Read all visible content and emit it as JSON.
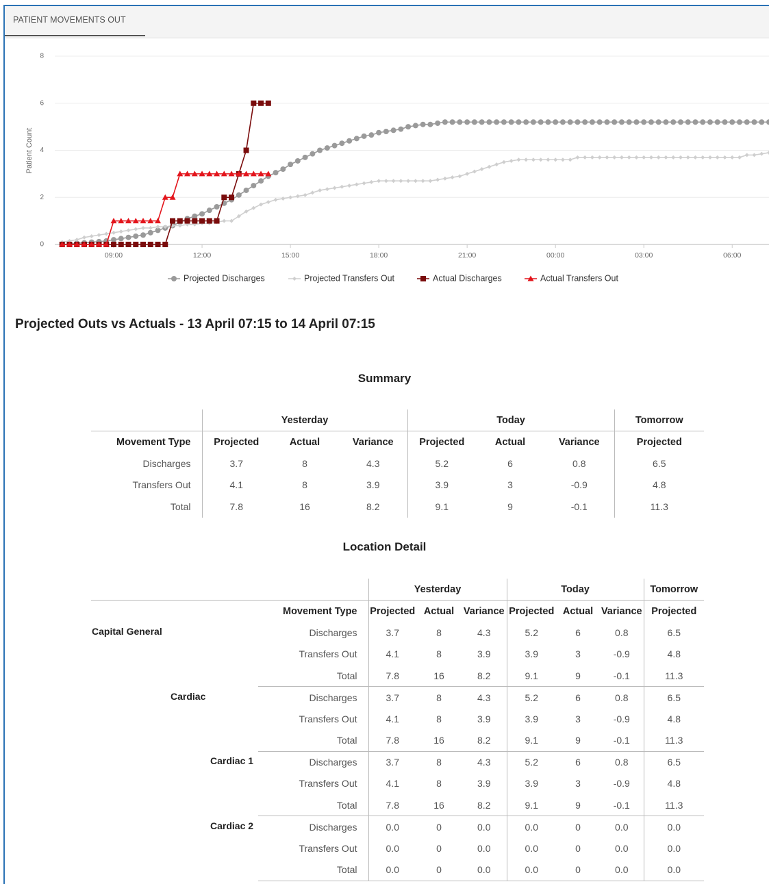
{
  "tab": "PATIENT MOVEMENTS OUT",
  "chart_data": {
    "type": "line",
    "ylabel": "Patient Count",
    "x": [
      7.25,
      7.5,
      7.75,
      8,
      8.25,
      8.5,
      8.75,
      9,
      9.25,
      9.5,
      9.75,
      10,
      10.25,
      10.5,
      10.75,
      11,
      11.25,
      11.5,
      11.75,
      12,
      12.25,
      12.5,
      12.75,
      13,
      13.25,
      13.5,
      13.75,
      14,
      14.25,
      14.5,
      14.75,
      15,
      15.25,
      15.5,
      15.75,
      16,
      16.25,
      16.5,
      16.75,
      17,
      17.25,
      17.5,
      17.75,
      18,
      18.25,
      18.5,
      18.75,
      19,
      19.25,
      19.5,
      19.75,
      20,
      20.25,
      20.5,
      20.75,
      21,
      21.25,
      21.5,
      21.75,
      22,
      22.25,
      22.5,
      22.75,
      23,
      23.25,
      23.5,
      23.75,
      24,
      24.25,
      24.5,
      24.75,
      25,
      25.25,
      25.5,
      25.75,
      26,
      26.25,
      26.5,
      26.75,
      27,
      27.25,
      27.5,
      27.75,
      28,
      28.25,
      28.5,
      28.75,
      29,
      29.25,
      29.5,
      29.75,
      30,
      30.25,
      30.5,
      30.75,
      31,
      31.25
    ],
    "xlim": [
      7,
      31.25
    ],
    "xticks": [
      {
        "value": 9,
        "label": "09:00"
      },
      {
        "value": 12,
        "label": "12:00"
      },
      {
        "value": 15,
        "label": "15:00"
      },
      {
        "value": 18,
        "label": "18:00"
      },
      {
        "value": 21,
        "label": "21:00"
      },
      {
        "value": 24,
        "label": "00:00"
      },
      {
        "value": 27,
        "label": "03:00"
      },
      {
        "value": 30,
        "label": "06:00"
      }
    ],
    "ylim": [
      0,
      8
    ],
    "yticks": [
      0,
      2,
      4,
      6,
      8
    ],
    "grid": true,
    "legend": "bottom",
    "series": [
      {
        "name": "Projected Discharges",
        "color": "#9a9a9a",
        "marker": "circle",
        "values": [
          0,
          0.02,
          0.05,
          0.07,
          0.1,
          0.12,
          0.15,
          0.2,
          0.25,
          0.3,
          0.35,
          0.4,
          0.5,
          0.6,
          0.7,
          0.8,
          0.95,
          1.1,
          1.2,
          1.3,
          1.45,
          1.6,
          1.75,
          1.9,
          2.1,
          2.3,
          2.5,
          2.7,
          2.9,
          3.05,
          3.2,
          3.4,
          3.55,
          3.7,
          3.85,
          4,
          4.1,
          4.2,
          4.3,
          4.4,
          4.5,
          4.6,
          4.65,
          4.75,
          4.8,
          4.85,
          4.9,
          5,
          5.05,
          5.1,
          5.1,
          5.15,
          5.2,
          5.2,
          5.2,
          5.2,
          5.2,
          5.2,
          5.2,
          5.2,
          5.2,
          5.2,
          5.2,
          5.2,
          5.2,
          5.2,
          5.2,
          5.2,
          5.2,
          5.2,
          5.2,
          5.2,
          5.2,
          5.2,
          5.2,
          5.2,
          5.2,
          5.2,
          5.2,
          5.2,
          5.2,
          5.2,
          5.2,
          5.2,
          5.2,
          5.2,
          5.2,
          5.2,
          5.2,
          5.2,
          5.2,
          5.2,
          5.2,
          5.2,
          5.2,
          5.2,
          5.2
        ]
      },
      {
        "name": "Projected Transfers Out",
        "color": "#cfcfcf",
        "marker": "diamond",
        "values": [
          0.1,
          0.15,
          0.2,
          0.3,
          0.35,
          0.4,
          0.45,
          0.5,
          0.55,
          0.6,
          0.65,
          0.7,
          0.7,
          0.75,
          0.75,
          0.8,
          0.8,
          0.85,
          0.85,
          0.9,
          0.9,
          0.95,
          1,
          1,
          1.2,
          1.4,
          1.55,
          1.7,
          1.8,
          1.9,
          1.95,
          2,
          2.05,
          2.1,
          2.2,
          2.3,
          2.35,
          2.4,
          2.45,
          2.5,
          2.55,
          2.6,
          2.65,
          2.7,
          2.7,
          2.7,
          2.7,
          2.7,
          2.7,
          2.7,
          2.7,
          2.75,
          2.8,
          2.85,
          2.9,
          3,
          3.1,
          3.2,
          3.3,
          3.4,
          3.5,
          3.55,
          3.6,
          3.6,
          3.6,
          3.6,
          3.6,
          3.6,
          3.6,
          3.6,
          3.7,
          3.7,
          3.7,
          3.7,
          3.7,
          3.7,
          3.7,
          3.7,
          3.7,
          3.7,
          3.7,
          3.7,
          3.7,
          3.7,
          3.7,
          3.7,
          3.7,
          3.7,
          3.7,
          3.7,
          3.7,
          3.7,
          3.7,
          3.8,
          3.8,
          3.85,
          3.9
        ]
      },
      {
        "name": "Actual Discharges",
        "color": "#7a0c0c",
        "marker": "square",
        "values": [
          0,
          0,
          0,
          0,
          0,
          0,
          0,
          0,
          0,
          0,
          0,
          0,
          0,
          0,
          0,
          1,
          1,
          1,
          1,
          1,
          1,
          1,
          2,
          2,
          3,
          4,
          6,
          6,
          6,
          null,
          null,
          null,
          null,
          null,
          null,
          null,
          null,
          null,
          null,
          null,
          null,
          null,
          null,
          null,
          null,
          null,
          null,
          null,
          null,
          null,
          null,
          null,
          null,
          null,
          null,
          null,
          null,
          null,
          null,
          null,
          null,
          null,
          null,
          null,
          null,
          null,
          null,
          null,
          null,
          null,
          null,
          null,
          null,
          null,
          null,
          null,
          null,
          null,
          null,
          null,
          null,
          null,
          null,
          null,
          null,
          null,
          null,
          null,
          null,
          null,
          null,
          null,
          null,
          null,
          null,
          null,
          null
        ]
      },
      {
        "name": "Actual Transfers Out",
        "color": "#e3151c",
        "marker": "triangle",
        "values": [
          0,
          0,
          0,
          0,
          0,
          0,
          0,
          1,
          1,
          1,
          1,
          1,
          1,
          1,
          2,
          2,
          3,
          3,
          3,
          3,
          3,
          3,
          3,
          3,
          3,
          3,
          3,
          3,
          3,
          null,
          null,
          null,
          null,
          null,
          null,
          null,
          null,
          null,
          null,
          null,
          null,
          null,
          null,
          null,
          null,
          null,
          null,
          null,
          null,
          null,
          null,
          null,
          null,
          null,
          null,
          null,
          null,
          null,
          null,
          null,
          null,
          null,
          null,
          null,
          null,
          null,
          null,
          null,
          null,
          null,
          null,
          null,
          null,
          null,
          null,
          null,
          null,
          null,
          null,
          null,
          null,
          null,
          null,
          null,
          null,
          null,
          null,
          null,
          null,
          null,
          null,
          null,
          null,
          null,
          null,
          null,
          null
        ]
      }
    ]
  },
  "heading": "Projected Outs vs Actuals - 13 April 07:15 to 14 April 07:15",
  "summary": {
    "title": "Summary",
    "row_header": "Movement Type",
    "groups": [
      {
        "name": "Yesterday",
        "columns": [
          "Projected",
          "Actual",
          "Variance"
        ]
      },
      {
        "name": "Today",
        "columns": [
          "Projected",
          "Actual",
          "Variance"
        ]
      },
      {
        "name": "Tomorrow",
        "columns": [
          "Projected"
        ]
      }
    ],
    "rows": [
      [
        "Discharges",
        "3.7",
        "8",
        "4.3",
        "5.2",
        "6",
        "0.8",
        "6.5"
      ],
      [
        "Transfers Out",
        "4.1",
        "8",
        "3.9",
        "3.9",
        "3",
        "-0.9",
        "4.8"
      ],
      [
        "Total",
        "7.8",
        "16",
        "8.2",
        "9.1",
        "9",
        "-0.1",
        "11.3"
      ]
    ]
  },
  "location_detail": {
    "title": "Location Detail",
    "row_header": "Movement Type",
    "groups": [
      {
        "name": "Yesterday",
        "columns": [
          "Projected",
          "Actual",
          "Variance"
        ]
      },
      {
        "name": "Today",
        "columns": [
          "Projected",
          "Actual",
          "Variance"
        ]
      },
      {
        "name": "Tomorrow",
        "columns": [
          "Projected"
        ]
      }
    ],
    "sections": [
      {
        "name": "Capital General",
        "rows": [
          [
            "Discharges",
            "3.7",
            "8",
            "4.3",
            "5.2",
            "6",
            "0.8",
            "6.5"
          ],
          [
            "Transfers Out",
            "4.1",
            "8",
            "3.9",
            "3.9",
            "3",
            "-0.9",
            "4.8"
          ],
          [
            "Total",
            "7.8",
            "16",
            "8.2",
            "9.1",
            "9",
            "-0.1",
            "11.3"
          ]
        ]
      },
      {
        "name": "Cardiac",
        "rows": [
          [
            "Discharges",
            "3.7",
            "8",
            "4.3",
            "5.2",
            "6",
            "0.8",
            "6.5"
          ],
          [
            "Transfers Out",
            "4.1",
            "8",
            "3.9",
            "3.9",
            "3",
            "-0.9",
            "4.8"
          ],
          [
            "Total",
            "7.8",
            "16",
            "8.2",
            "9.1",
            "9",
            "-0.1",
            "11.3"
          ]
        ]
      },
      {
        "name": "Cardiac 1",
        "rows": [
          [
            "Discharges",
            "3.7",
            "8",
            "4.3",
            "5.2",
            "6",
            "0.8",
            "6.5"
          ],
          [
            "Transfers Out",
            "4.1",
            "8",
            "3.9",
            "3.9",
            "3",
            "-0.9",
            "4.8"
          ],
          [
            "Total",
            "7.8",
            "16",
            "8.2",
            "9.1",
            "9",
            "-0.1",
            "11.3"
          ]
        ]
      },
      {
        "name": "Cardiac 2",
        "rows": [
          [
            "Discharges",
            "0.0",
            "0",
            "0.0",
            "0.0",
            "0",
            "0.0",
            "0.0"
          ],
          [
            "Transfers Out",
            "0.0",
            "0",
            "0.0",
            "0.0",
            "0",
            "0.0",
            "0.0"
          ],
          [
            "Total",
            "0.0",
            "0",
            "0.0",
            "0.0",
            "0",
            "0.0",
            "0.0"
          ]
        ]
      }
    ]
  }
}
